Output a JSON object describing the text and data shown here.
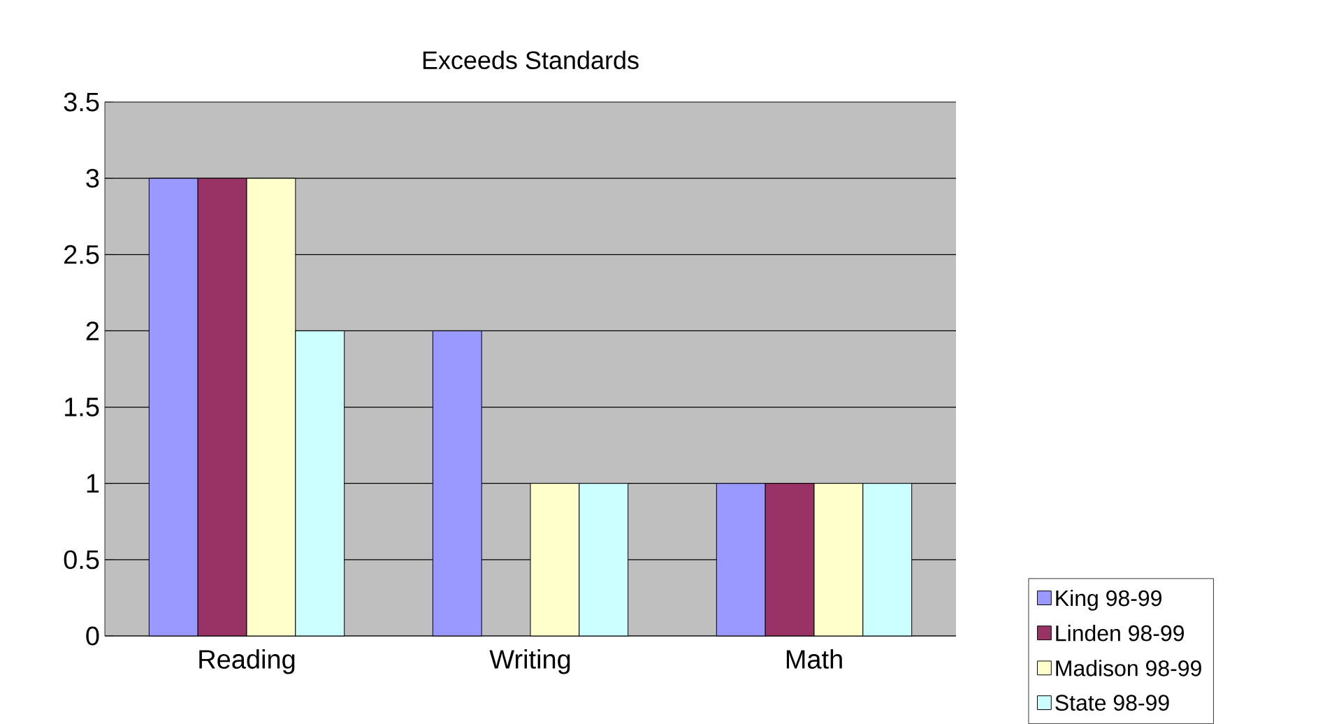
{
  "chart_data": {
    "type": "bar",
    "title": "Exceeds Standards",
    "categories": [
      "Reading",
      "Writing",
      "Math"
    ],
    "series": [
      {
        "name": "King 98-99",
        "color": "#9999ff",
        "values": [
          3,
          2,
          1
        ]
      },
      {
        "name": "Linden 98-99",
        "color": "#993366",
        "values": [
          3,
          null,
          1
        ]
      },
      {
        "name": "Madison 98-99",
        "color": "#ffffcc",
        "values": [
          3,
          1,
          1
        ]
      },
      {
        "name": "State 98-99",
        "color": "#ccffff",
        "values": [
          2,
          1,
          1
        ]
      }
    ],
    "ylim": [
      0,
      3.5
    ],
    "yticks": [
      0,
      0.5,
      1,
      1.5,
      2,
      2.5,
      3,
      3.5
    ],
    "grid": "y",
    "legend": "right"
  }
}
